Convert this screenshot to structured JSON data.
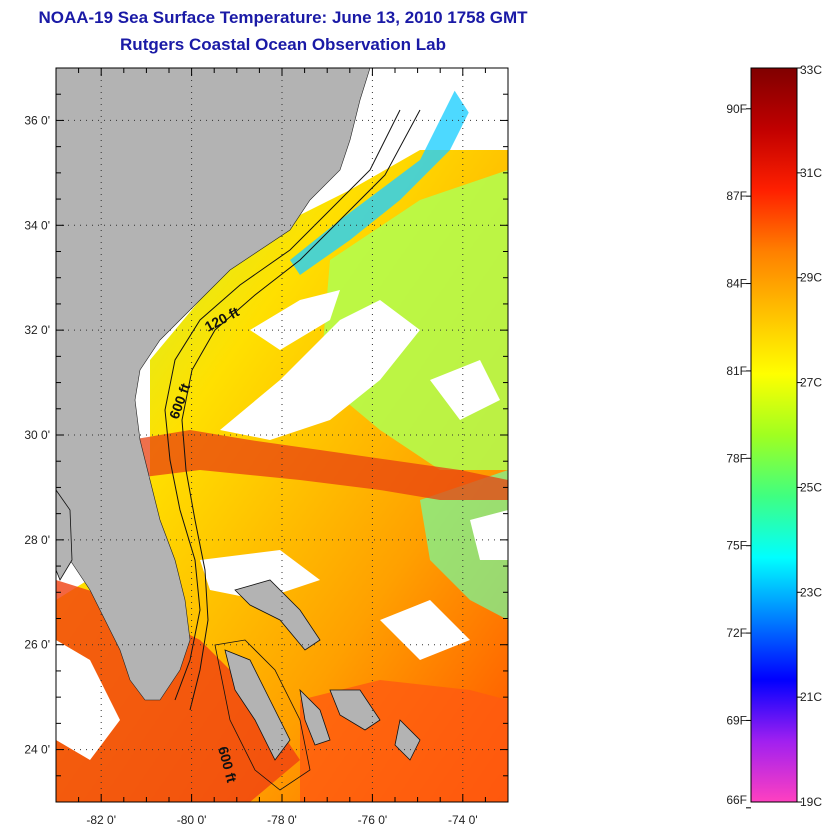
{
  "title": "NOAA-19 Sea Surface Temperature:  June 13, 2010 1758 GMT",
  "subtitle": "Rutgers Coastal Ocean Observation Lab",
  "map": {
    "lat_labels": [
      "36 0'",
      "34 0'",
      "32 0'",
      "30 0'",
      "28 0'",
      "26 0'",
      "24 0'"
    ],
    "lat_values": [
      36,
      34,
      32,
      30,
      28,
      26,
      24
    ],
    "lon_labels": [
      "-82 0'",
      "-80 0'",
      "-78 0'",
      "-76 0'",
      "-74 0'"
    ],
    "lon_values": [
      -82,
      -80,
      -78,
      -76,
      -74
    ],
    "lat_range": [
      23.0,
      37.0
    ],
    "lon_range": [
      -83.0,
      -73.0
    ],
    "depth_labels": [
      "120 ft",
      "600 ft",
      "600 ft"
    ],
    "colors": {
      "land": "#b3b3b3",
      "cloud": "#ffffff",
      "contour": "#111111"
    }
  },
  "colorbar": {
    "celsius_labels": [
      "33C",
      "31C",
      "29C",
      "27C",
      "25C",
      "23C",
      "21C",
      "19C"
    ],
    "celsius_values": [
      33,
      31,
      29,
      27,
      25,
      23,
      21,
      19
    ],
    "fahrenheit_labels": [
      "90F",
      "87F",
      "84F",
      "81F",
      "78F",
      "75F",
      "72F",
      "69F",
      "66F"
    ],
    "fahrenheit_values": [
      90,
      87,
      84,
      81,
      78,
      75,
      72,
      69,
      66
    ],
    "range_c": [
      19,
      33
    ],
    "colors": [
      "#ff40c0",
      "#a020f0",
      "#0000ff",
      "#0080ff",
      "#00ffff",
      "#40ff80",
      "#a0ff20",
      "#ffff00",
      "#ffc000",
      "#ff8000",
      "#ff2000",
      "#c00000",
      "#800000"
    ]
  }
}
